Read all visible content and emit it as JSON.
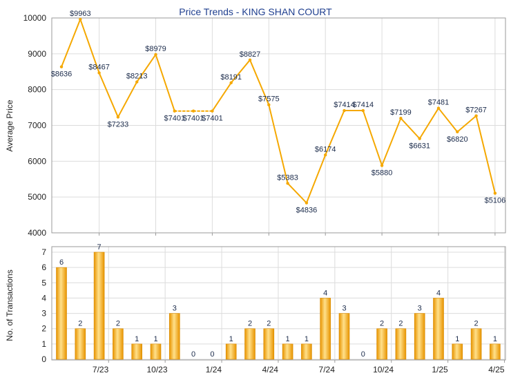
{
  "chart_data": [
    {
      "type": "line",
      "title": "Price Trends - KING SHAN COURT",
      "ylabel": "Average Price",
      "ylim": [
        4000,
        10000
      ],
      "yticks": [
        4000,
        5000,
        6000,
        7000,
        8000,
        9000,
        10000
      ],
      "x_tick_labels": [
        "7/23",
        "10/23",
        "1/24",
        "4/24",
        "7/24",
        "10/24",
        "1/25",
        "4/25"
      ],
      "x_tick_index": [
        2,
        5,
        8,
        11,
        14,
        17,
        20,
        23
      ],
      "grid": true,
      "color": "#f5a800",
      "values": [
        8636,
        9963,
        8467,
        7233,
        8213,
        8979,
        7401,
        7401,
        7401,
        8191,
        8827,
        7575,
        5383,
        4836,
        6174,
        7414,
        7414,
        5880,
        7199,
        6631,
        7481,
        6820,
        7267,
        5106
      ],
      "labels": [
        "$8636",
        "$9963",
        "$8467",
        "$7233",
        "$8213",
        "$8979",
        "$7401",
        "$7401",
        "$7401",
        "$8191",
        "$8827",
        "$7575",
        "$5383",
        "$4836",
        "$6174",
        "$7414",
        "$7414",
        "$5880",
        "$7199",
        "$6631",
        "$7481",
        "$6820",
        "$7267",
        "$5106"
      ],
      "interpolated_segments": [
        [
          6,
          8
        ]
      ]
    },
    {
      "type": "bar",
      "ylabel": "No. of Transactions",
      "ylim": [
        0,
        7
      ],
      "yticks": [
        0,
        1,
        2,
        3,
        4,
        5,
        6,
        7
      ],
      "x_tick_labels": [
        "7/23",
        "10/23",
        "1/24",
        "4/24",
        "7/24",
        "10/24",
        "1/25",
        "4/25"
      ],
      "x_tick_index": [
        2,
        5,
        8,
        11,
        14,
        17,
        20,
        23
      ],
      "grid": true,
      "color": "#f5b400",
      "values": [
        6,
        2,
        7,
        2,
        1,
        1,
        3,
        0,
        0,
        1,
        2,
        2,
        1,
        1,
        4,
        3,
        0,
        2,
        2,
        3,
        4,
        1,
        2,
        1
      ]
    }
  ]
}
